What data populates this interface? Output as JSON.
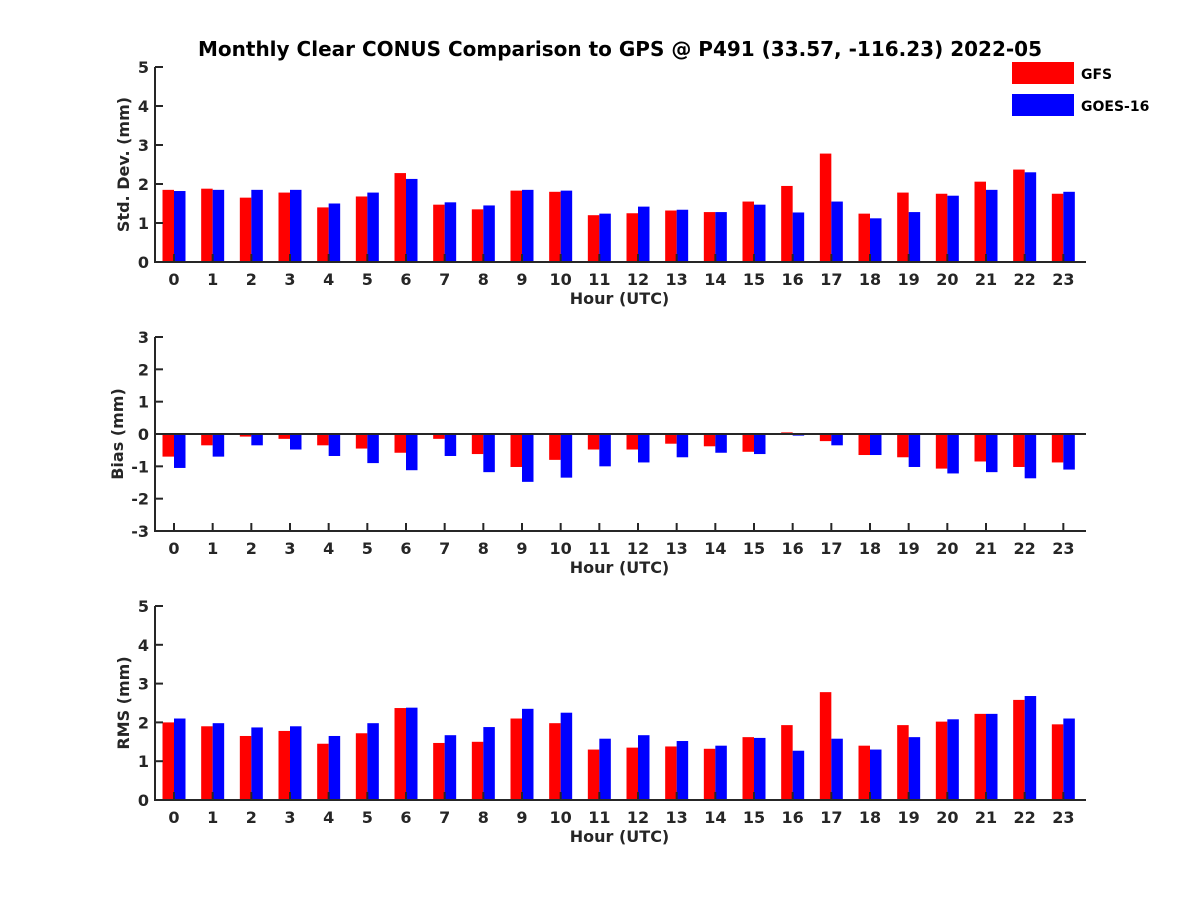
{
  "title": "Monthly Clear CONUS Comparison to GPS @ P491 (33.57, -116.23) 2022-05",
  "legend": [
    {
      "name": "GFS",
      "color": "#ff0000"
    },
    {
      "name": "GOES-16",
      "color": "#0000ff"
    }
  ],
  "chart_data": [
    {
      "type": "bar",
      "xlabel": "Hour (UTC)",
      "ylabel": "Std. Dev. (mm)",
      "ylim": [
        0,
        5
      ],
      "yticks": [
        "0",
        "1",
        "2",
        "3",
        "4",
        "5"
      ],
      "categories": [
        "0",
        "1",
        "2",
        "3",
        "4",
        "5",
        "6",
        "7",
        "8",
        "9",
        "10",
        "11",
        "12",
        "13",
        "14",
        "15",
        "16",
        "17",
        "18",
        "19",
        "20",
        "21",
        "22",
        "23"
      ],
      "series": [
        {
          "name": "GFS",
          "values": [
            1.85,
            1.88,
            1.65,
            1.78,
            1.4,
            1.68,
            2.28,
            1.47,
            1.35,
            1.83,
            1.8,
            1.2,
            1.25,
            1.32,
            1.28,
            1.55,
            1.95,
            2.78,
            1.24,
            1.78,
            1.75,
            2.06,
            2.37,
            1.75
          ]
        },
        {
          "name": "GOES-16",
          "values": [
            1.82,
            1.85,
            1.85,
            1.85,
            1.5,
            1.78,
            2.13,
            1.53,
            1.45,
            1.85,
            1.83,
            1.24,
            1.42,
            1.34,
            1.28,
            1.47,
            1.27,
            1.55,
            1.12,
            1.28,
            1.7,
            1.85,
            2.3,
            1.8
          ]
        }
      ]
    },
    {
      "type": "bar",
      "xlabel": "Hour (UTC)",
      "ylabel": "Bias (mm)",
      "ylim": [
        -3,
        3
      ],
      "yticks": [
        "-3",
        "-2",
        "-1",
        "0",
        "1",
        "2",
        "3"
      ],
      "categories": [
        "0",
        "1",
        "2",
        "3",
        "4",
        "5",
        "6",
        "7",
        "8",
        "9",
        "10",
        "11",
        "12",
        "13",
        "14",
        "15",
        "16",
        "17",
        "18",
        "19",
        "20",
        "21",
        "22",
        "23"
      ],
      "series": [
        {
          "name": "GFS",
          "values": [
            -0.7,
            -0.35,
            -0.08,
            -0.15,
            -0.35,
            -0.45,
            -0.58,
            -0.15,
            -0.62,
            -1.02,
            -0.8,
            -0.48,
            -0.48,
            -0.3,
            -0.38,
            -0.55,
            0.05,
            -0.22,
            -0.65,
            -0.72,
            -1.07,
            -0.85,
            -1.02,
            -0.88
          ]
        },
        {
          "name": "GOES-16",
          "values": [
            -1.05,
            -0.7,
            -0.35,
            -0.48,
            -0.68,
            -0.9,
            -1.12,
            -0.68,
            -1.18,
            -1.48,
            -1.35,
            -1.0,
            -0.88,
            -0.72,
            -0.58,
            -0.62,
            -0.05,
            -0.35,
            -0.65,
            -1.02,
            -1.22,
            -1.18,
            -1.37,
            -1.1
          ]
        }
      ]
    },
    {
      "type": "bar",
      "xlabel": "Hour (UTC)",
      "ylabel": "RMS (mm)",
      "ylim": [
        0,
        5
      ],
      "yticks": [
        "0",
        "1",
        "2",
        "3",
        "4",
        "5"
      ],
      "categories": [
        "0",
        "1",
        "2",
        "3",
        "4",
        "5",
        "6",
        "7",
        "8",
        "9",
        "10",
        "11",
        "12",
        "13",
        "14",
        "15",
        "16",
        "17",
        "18",
        "19",
        "20",
        "21",
        "22",
        "23"
      ],
      "series": [
        {
          "name": "GFS",
          "values": [
            2.0,
            1.9,
            1.65,
            1.78,
            1.45,
            1.72,
            2.37,
            1.47,
            1.5,
            2.1,
            1.98,
            1.3,
            1.35,
            1.38,
            1.32,
            1.62,
            1.93,
            2.78,
            1.4,
            1.93,
            2.02,
            2.22,
            2.58,
            1.95
          ]
        },
        {
          "name": "GOES-16",
          "values": [
            2.1,
            1.98,
            1.87,
            1.9,
            1.65,
            1.98,
            2.38,
            1.67,
            1.88,
            2.35,
            2.25,
            1.58,
            1.67,
            1.52,
            1.4,
            1.6,
            1.27,
            1.58,
            1.3,
            1.62,
            2.08,
            2.22,
            2.68,
            2.1
          ]
        }
      ]
    }
  ]
}
